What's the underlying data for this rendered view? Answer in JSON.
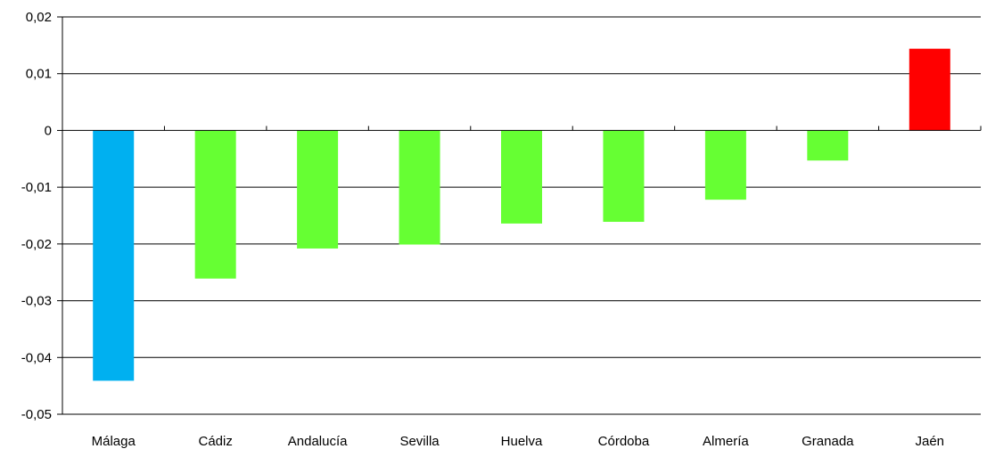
{
  "chart_data": {
    "type": "bar",
    "title": "",
    "xlabel": "",
    "ylabel": "",
    "categories": [
      "Málaga",
      "Cádiz",
      "Andalucía",
      "Sevilla",
      "Huelva",
      "Córdoba",
      "Almería",
      "Granada",
      "Jaén"
    ],
    "values": [
      -0.0441,
      -0.0261,
      -0.0208,
      -0.0201,
      -0.0164,
      -0.0161,
      -0.0122,
      -0.0053,
      0.0144
    ],
    "bar_colors": [
      "#00b0f0",
      "#66ff33",
      "#66ff33",
      "#66ff33",
      "#66ff33",
      "#66ff33",
      "#66ff33",
      "#66ff33",
      "#ff0000"
    ],
    "ylim": [
      -0.05,
      0.02
    ],
    "y_ticks": [
      0.02,
      0.01,
      0,
      -0.01,
      -0.02,
      -0.03,
      -0.04,
      -0.05
    ],
    "y_tick_labels": [
      "0,02",
      "0,01",
      "0",
      "-0,01",
      "-0,02",
      "-0,03",
      "-0,04",
      "-0,05"
    ],
    "grid": true,
    "legend": "none"
  }
}
